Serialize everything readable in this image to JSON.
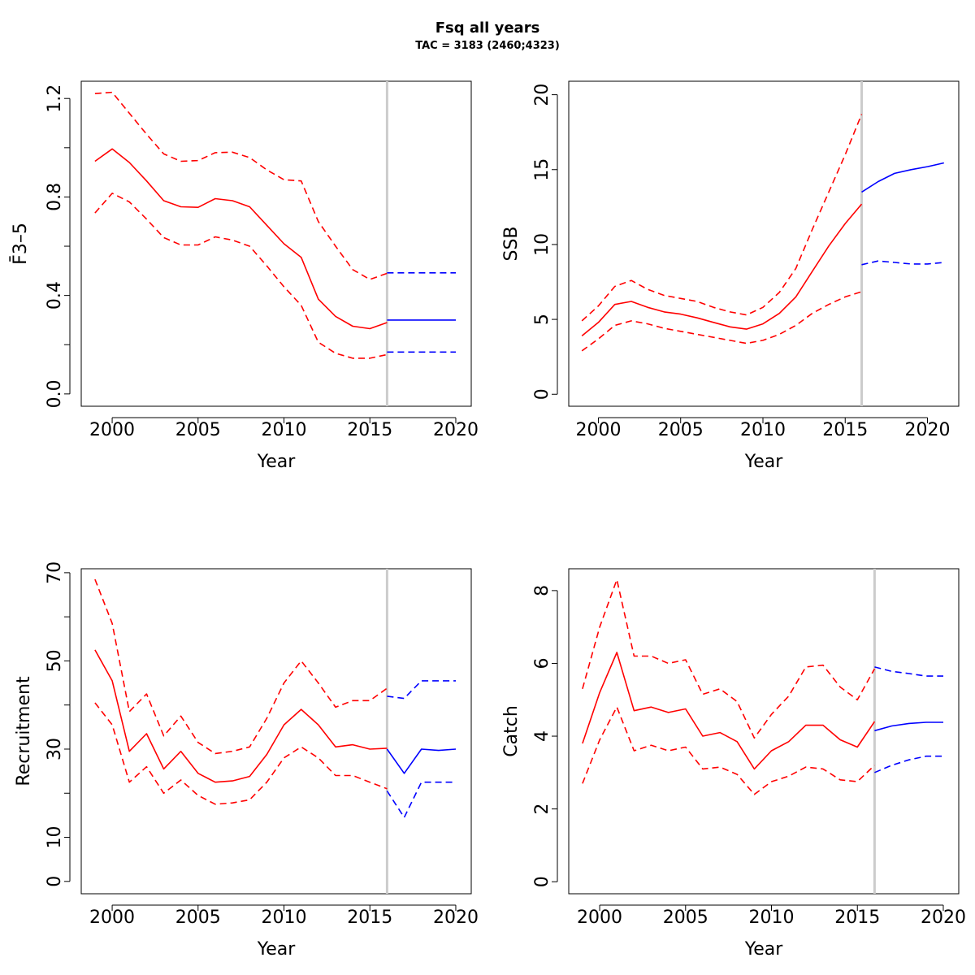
{
  "figure": {
    "title": "Fsq all years",
    "subtitle": "TAC = 3183 (2460;4323)"
  },
  "colors": {
    "estimate": "#ff0000",
    "projection": "#0000ff",
    "divider": "#cccccc",
    "axis": "#000000"
  },
  "chart_data": [
    {
      "type": "line",
      "id": "fbar",
      "ylabel": "F̄3–5",
      "xlabel": "Year",
      "xlim": [
        1998.2,
        2020.9
      ],
      "ylim": [
        -0.05,
        1.27
      ],
      "xticks": [
        2000,
        2005,
        2010,
        2015,
        2020
      ],
      "yticks": [
        0.0,
        0.4,
        0.8,
        1.2
      ],
      "ytick_labels": [
        "0.0",
        "0.4",
        "0.8",
        "1.2"
      ],
      "yminor": [
        0.2,
        0.6,
        1.0
      ],
      "divider_x": 2016,
      "grid": false,
      "series": [
        {
          "role": "estimate",
          "style": "solid",
          "x": [
            1999,
            2000,
            2001,
            2002,
            2003,
            2004,
            2005,
            2006,
            2007,
            2008,
            2009,
            2010,
            2011,
            2012,
            2013,
            2014,
            2015,
            2016
          ],
          "y": [
            0.945,
            0.995,
            0.94,
            0.865,
            0.785,
            0.76,
            0.758,
            0.793,
            0.785,
            0.76,
            0.685,
            0.61,
            0.555,
            0.385,
            0.315,
            0.275,
            0.265,
            0.29
          ]
        },
        {
          "role": "estimate-upper",
          "style": "dashed",
          "x": [
            1999,
            2000,
            2001,
            2002,
            2003,
            2004,
            2005,
            2006,
            2007,
            2008,
            2009,
            2010,
            2011,
            2012,
            2013,
            2014,
            2015,
            2016
          ],
          "y": [
            1.22,
            1.225,
            1.14,
            1.055,
            0.975,
            0.945,
            0.948,
            0.98,
            0.982,
            0.96,
            0.91,
            0.87,
            0.865,
            0.7,
            0.6,
            0.505,
            0.465,
            0.49
          ]
        },
        {
          "role": "estimate-lower",
          "style": "dashed",
          "x": [
            1999,
            2000,
            2001,
            2002,
            2003,
            2004,
            2005,
            2006,
            2007,
            2008,
            2009,
            2010,
            2011,
            2012,
            2013,
            2014,
            2015,
            2016
          ],
          "y": [
            0.735,
            0.815,
            0.78,
            0.71,
            0.635,
            0.605,
            0.605,
            0.638,
            0.625,
            0.6,
            0.52,
            0.435,
            0.36,
            0.21,
            0.165,
            0.145,
            0.145,
            0.16
          ]
        },
        {
          "role": "projection",
          "style": "solid",
          "x": [
            2016,
            2017,
            2018,
            2019,
            2020
          ],
          "y": [
            0.3,
            0.3,
            0.3,
            0.3,
            0.3
          ]
        },
        {
          "role": "projection-upper",
          "style": "dashed",
          "x": [
            2016,
            2017,
            2018,
            2019,
            2020
          ],
          "y": [
            0.492,
            0.492,
            0.492,
            0.492,
            0.492
          ]
        },
        {
          "role": "projection-lower",
          "style": "dashed",
          "x": [
            2016,
            2017,
            2018,
            2019,
            2020
          ],
          "y": [
            0.17,
            0.17,
            0.17,
            0.17,
            0.17
          ]
        }
      ]
    },
    {
      "type": "line",
      "id": "ssb",
      "ylabel": "SSB",
      "xlabel": "Year",
      "xlim": [
        1998.2,
        2021.9
      ],
      "ylim": [
        -0.8,
        20.9
      ],
      "xticks": [
        2000,
        2005,
        2010,
        2015,
        2020
      ],
      "yticks": [
        0,
        5,
        10,
        15,
        20
      ],
      "ytick_labels": [
        "0",
        "5",
        "10",
        "15",
        "20"
      ],
      "yminor": [],
      "divider_x": 2016,
      "grid": false,
      "series": [
        {
          "role": "estimate",
          "style": "solid",
          "x": [
            1999,
            2000,
            2001,
            2002,
            2003,
            2004,
            2005,
            2006,
            2007,
            2008,
            2009,
            2010,
            2011,
            2012,
            2013,
            2014,
            2015,
            2016
          ],
          "y": [
            3.9,
            4.8,
            6.0,
            6.2,
            5.8,
            5.5,
            5.35,
            5.1,
            4.8,
            4.5,
            4.35,
            4.7,
            5.4,
            6.5,
            8.2,
            9.9,
            11.4,
            12.7
          ]
        },
        {
          "role": "estimate-upper",
          "style": "dashed",
          "x": [
            1999,
            2000,
            2001,
            2002,
            2003,
            2004,
            2005,
            2006,
            2007,
            2008,
            2009,
            2010,
            2011,
            2012,
            2013,
            2014,
            2015,
            2016
          ],
          "y": [
            4.9,
            5.9,
            7.2,
            7.6,
            7.0,
            6.6,
            6.4,
            6.2,
            5.8,
            5.5,
            5.3,
            5.8,
            6.8,
            8.4,
            11.0,
            13.5,
            16.0,
            18.7
          ]
        },
        {
          "role": "estimate-lower",
          "style": "dashed",
          "x": [
            1999,
            2000,
            2001,
            2002,
            2003,
            2004,
            2005,
            2006,
            2007,
            2008,
            2009,
            2010,
            2011,
            2012,
            2013,
            2014,
            2015,
            2016
          ],
          "y": [
            2.9,
            3.7,
            4.6,
            4.9,
            4.7,
            4.4,
            4.2,
            4.0,
            3.8,
            3.6,
            3.4,
            3.6,
            4.0,
            4.6,
            5.4,
            6.0,
            6.5,
            6.85
          ]
        },
        {
          "role": "projection",
          "style": "solid",
          "x": [
            2016,
            2017,
            2018,
            2019,
            2020,
            2021
          ],
          "y": [
            13.5,
            14.2,
            14.75,
            15.0,
            15.2,
            15.45
          ]
        },
        {
          "role": "projection-lower",
          "style": "dashed",
          "x": [
            2016,
            2017,
            2018,
            2019,
            2020,
            2021
          ],
          "y": [
            8.65,
            8.9,
            8.8,
            8.7,
            8.7,
            8.8
          ]
        }
      ]
    },
    {
      "type": "line",
      "id": "recruitment",
      "ylabel": "Recruitment",
      "xlabel": "Year",
      "xlim": [
        1998.2,
        2020.9
      ],
      "ylim": [
        -2.8,
        70.9
      ],
      "xticks": [
        2000,
        2005,
        2010,
        2015,
        2020
      ],
      "yticks": [
        0,
        10,
        30,
        50,
        70
      ],
      "ytick_labels": [
        "0",
        "10",
        "30",
        "50",
        "70"
      ],
      "yminor": [
        20,
        40,
        60
      ],
      "divider_x": 2016,
      "grid": false,
      "series": [
        {
          "role": "estimate",
          "style": "solid",
          "x": [
            1999,
            2000,
            2001,
            2002,
            2003,
            2004,
            2005,
            2006,
            2007,
            2008,
            2009,
            2010,
            2011,
            2012,
            2013,
            2014,
            2015,
            2016
          ],
          "y": [
            52.5,
            45.5,
            29.5,
            33.5,
            25.5,
            29.5,
            24.5,
            22.5,
            22.8,
            23.8,
            28.8,
            35.5,
            39.0,
            35.5,
            30.5,
            31.0,
            30.0,
            30.2
          ]
        },
        {
          "role": "estimate-upper",
          "style": "dashed",
          "x": [
            1999,
            2000,
            2001,
            2002,
            2003,
            2004,
            2005,
            2006,
            2007,
            2008,
            2009,
            2010,
            2011,
            2012,
            2013,
            2014,
            2015,
            2016
          ],
          "y": [
            68.5,
            58.5,
            38.5,
            42.5,
            33.0,
            37.5,
            31.5,
            29.0,
            29.5,
            30.5,
            37.0,
            45.0,
            50.0,
            45.0,
            39.5,
            41.0,
            41.0,
            43.8
          ]
        },
        {
          "role": "estimate-lower",
          "style": "dashed",
          "x": [
            1999,
            2000,
            2001,
            2002,
            2003,
            2004,
            2005,
            2006,
            2007,
            2008,
            2009,
            2010,
            2011,
            2012,
            2013,
            2014,
            2015,
            2016
          ],
          "y": [
            40.5,
            35.5,
            22.5,
            26.0,
            20.0,
            23.0,
            19.5,
            17.5,
            17.8,
            18.5,
            22.5,
            28.0,
            30.5,
            28.0,
            24.0,
            24.0,
            22.5,
            21.0
          ]
        },
        {
          "role": "projection",
          "style": "solid",
          "x": [
            2016,
            2017,
            2018,
            2019,
            2020
          ],
          "y": [
            30.0,
            24.5,
            30.0,
            29.7,
            30.0
          ]
        },
        {
          "role": "projection-upper",
          "style": "dashed",
          "x": [
            2016,
            2017,
            2018,
            2019,
            2020
          ],
          "y": [
            42.0,
            41.5,
            45.5,
            45.5,
            45.5
          ]
        },
        {
          "role": "projection-lower",
          "style": "dashed",
          "x": [
            2016,
            2017,
            2018,
            2019,
            2020
          ],
          "y": [
            20.5,
            14.5,
            22.5,
            22.5,
            22.5
          ]
        }
      ]
    },
    {
      "type": "line",
      "id": "catch",
      "ylabel": "Catch",
      "xlabel": "Year",
      "xlim": [
        1998.2,
        2020.9
      ],
      "ylim": [
        -0.33,
        8.6
      ],
      "xticks": [
        2000,
        2005,
        2010,
        2015,
        2020
      ],
      "yticks": [
        0,
        2,
        4,
        6,
        8
      ],
      "ytick_labels": [
        "0",
        "2",
        "4",
        "6",
        "8"
      ],
      "yminor": [],
      "divider_x": 2016,
      "grid": false,
      "series": [
        {
          "role": "estimate",
          "style": "solid",
          "x": [
            1999,
            2000,
            2001,
            2002,
            2003,
            2004,
            2005,
            2006,
            2007,
            2008,
            2009,
            2010,
            2011,
            2012,
            2013,
            2014,
            2015,
            2016
          ],
          "y": [
            3.8,
            5.2,
            6.3,
            4.7,
            4.8,
            4.65,
            4.75,
            4.0,
            4.1,
            3.85,
            3.1,
            3.6,
            3.85,
            4.3,
            4.3,
            3.9,
            3.7,
            4.4
          ]
        },
        {
          "role": "estimate-upper",
          "style": "dashed",
          "x": [
            1999,
            2000,
            2001,
            2002,
            2003,
            2004,
            2005,
            2006,
            2007,
            2008,
            2009,
            2010,
            2011,
            2012,
            2013,
            2014,
            2015,
            2016
          ],
          "y": [
            5.3,
            7.0,
            8.3,
            6.2,
            6.2,
            6.0,
            6.1,
            5.15,
            5.3,
            4.95,
            3.95,
            4.6,
            5.1,
            5.9,
            5.95,
            5.35,
            5.0,
            5.85
          ]
        },
        {
          "role": "estimate-lower",
          "style": "dashed",
          "x": [
            1999,
            2000,
            2001,
            2002,
            2003,
            2004,
            2005,
            2006,
            2007,
            2008,
            2009,
            2010,
            2011,
            2012,
            2013,
            2014,
            2015,
            2016
          ],
          "y": [
            2.7,
            3.9,
            4.8,
            3.6,
            3.75,
            3.6,
            3.7,
            3.1,
            3.15,
            2.95,
            2.4,
            2.75,
            2.9,
            3.15,
            3.1,
            2.8,
            2.75,
            3.2
          ]
        },
        {
          "role": "projection",
          "style": "solid",
          "x": [
            2016,
            2017,
            2018,
            2019,
            2020
          ],
          "y": [
            4.15,
            4.28,
            4.35,
            4.38,
            4.38
          ]
        },
        {
          "role": "projection-upper",
          "style": "dashed",
          "x": [
            2016,
            2017,
            2018,
            2019,
            2020
          ],
          "y": [
            5.9,
            5.78,
            5.72,
            5.65,
            5.65
          ]
        },
        {
          "role": "projection-lower",
          "style": "dashed",
          "x": [
            2016,
            2017,
            2018,
            2019,
            2020
          ],
          "y": [
            3.0,
            3.2,
            3.35,
            3.45,
            3.45
          ]
        }
      ]
    }
  ]
}
